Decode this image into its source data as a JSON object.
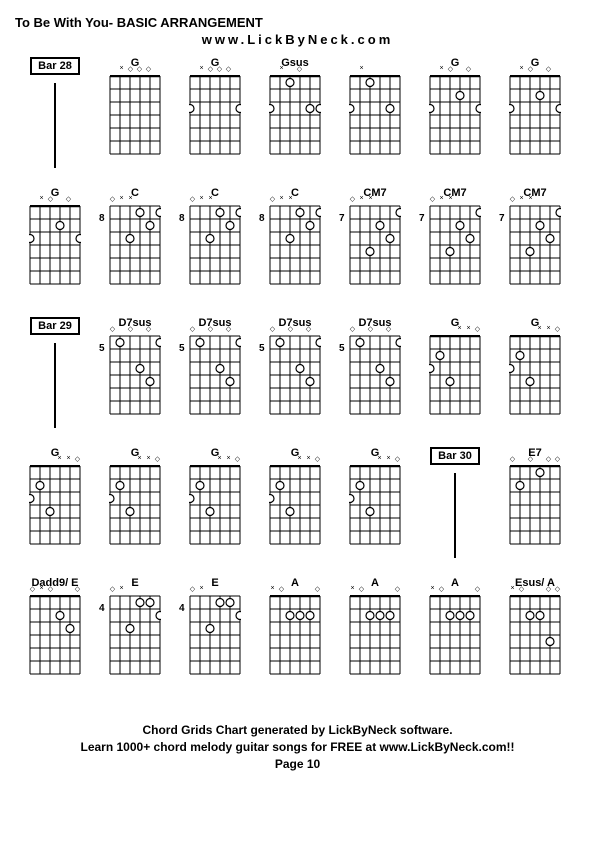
{
  "title": "To Be With You- BASIC ARRANGEMENT",
  "subtitle": "www.LickByNeck.com",
  "footer_line1": "Chord Grids Chart generated by LickByNeck software.",
  "footer_line2": "Learn 1000+ chord melody guitar songs for FREE at www.LickByNeck.com!!",
  "footer_line3": "Page 10",
  "grid_style": {
    "frets": 6,
    "strings": 6,
    "width": 50,
    "height": 78,
    "line_color": "#000000",
    "dot_color": "#ffffff",
    "dot_stroke": "#000000",
    "open_marker": "○",
    "muted_marker": "×",
    "barre_marker": "◇"
  },
  "chords": [
    {
      "type": "bar",
      "label": "Bar 28"
    },
    {
      "type": "chord",
      "name": "G",
      "fret": "",
      "markers": [
        "",
        "×",
        "◇",
        "◇",
        "◇",
        ""
      ],
      "dots": []
    },
    {
      "type": "chord",
      "name": "G",
      "fret": "",
      "markers": [
        "",
        "×",
        "◇",
        "◇",
        "◇",
        ""
      ],
      "dots": [
        [
          3,
          1
        ],
        [
          3,
          6
        ]
      ]
    },
    {
      "type": "chord",
      "name": "Gsus",
      "fret": "",
      "markers": [
        "",
        "×",
        "",
        "◇",
        "",
        ""
      ],
      "dots": [
        [
          1,
          3
        ],
        [
          3,
          1
        ],
        [
          3,
          5
        ],
        [
          3,
          6
        ]
      ]
    },
    {
      "type": "chord",
      "name": "",
      "fret": "",
      "markers": [
        "",
        "×",
        "",
        "",
        "",
        ""
      ],
      "dots": [
        [
          1,
          3
        ],
        [
          3,
          1
        ],
        [
          3,
          5
        ]
      ]
    },
    {
      "type": "chord",
      "name": "G",
      "fret": "",
      "markers": [
        "",
        "×",
        "◇",
        "",
        "◇",
        ""
      ],
      "dots": [
        [
          2,
          4
        ],
        [
          3,
          1
        ],
        [
          3,
          6
        ]
      ]
    },
    {
      "type": "chord",
      "name": "G",
      "fret": "",
      "markers": [
        "",
        "×",
        "◇",
        "",
        "◇",
        ""
      ],
      "dots": [
        [
          2,
          4
        ],
        [
          3,
          1
        ],
        [
          3,
          6
        ]
      ]
    },
    {
      "type": "chord",
      "name": "G",
      "fret": "",
      "markers": [
        "",
        "×",
        "◇",
        "",
        "◇",
        ""
      ],
      "dots": [
        [
          2,
          4
        ],
        [
          3,
          1
        ],
        [
          3,
          6
        ]
      ]
    },
    {
      "type": "chord",
      "name": "C",
      "fret": "8",
      "markers": [
        "◇",
        "×",
        "×",
        "",
        "",
        ""
      ],
      "dots": [
        [
          1,
          4
        ],
        [
          1,
          6
        ],
        [
          2,
          5
        ],
        [
          3,
          3
        ]
      ]
    },
    {
      "type": "chord",
      "name": "C",
      "fret": "8",
      "markers": [
        "◇",
        "×",
        "×",
        "",
        "",
        ""
      ],
      "dots": [
        [
          1,
          4
        ],
        [
          1,
          6
        ],
        [
          2,
          5
        ],
        [
          3,
          3
        ]
      ]
    },
    {
      "type": "chord",
      "name": "C",
      "fret": "8",
      "markers": [
        "◇",
        "×",
        "×",
        "",
        "",
        ""
      ],
      "dots": [
        [
          1,
          4
        ],
        [
          1,
          6
        ],
        [
          2,
          5
        ],
        [
          3,
          3
        ]
      ]
    },
    {
      "type": "chord",
      "name": "CM7",
      "fret": "7",
      "markers": [
        "◇",
        "×",
        "×",
        "",
        "",
        ""
      ],
      "dots": [
        [
          1,
          6
        ],
        [
          2,
          4
        ],
        [
          3,
          5
        ],
        [
          4,
          3
        ]
      ]
    },
    {
      "type": "chord",
      "name": "CM7",
      "fret": "7",
      "markers": [
        "◇",
        "×",
        "×",
        "",
        "",
        ""
      ],
      "dots": [
        [
          1,
          6
        ],
        [
          2,
          4
        ],
        [
          3,
          5
        ],
        [
          4,
          3
        ]
      ]
    },
    {
      "type": "chord",
      "name": "CM7",
      "fret": "7",
      "markers": [
        "◇",
        "×",
        "×",
        "",
        "",
        ""
      ],
      "dots": [
        [
          1,
          6
        ],
        [
          2,
          4
        ],
        [
          3,
          5
        ],
        [
          4,
          3
        ]
      ]
    },
    {
      "type": "bar",
      "label": "Bar 29"
    },
    {
      "type": "chord",
      "name": "D7sus",
      "fret": "5",
      "markers": [
        "◇",
        "",
        "◇",
        "",
        "◇",
        ""
      ],
      "dots": [
        [
          1,
          2
        ],
        [
          1,
          6
        ],
        [
          3,
          4
        ],
        [
          4,
          5
        ]
      ]
    },
    {
      "type": "chord",
      "name": "D7sus",
      "fret": "5",
      "markers": [
        "◇",
        "",
        "◇",
        "",
        "◇",
        ""
      ],
      "dots": [
        [
          1,
          2
        ],
        [
          1,
          6
        ],
        [
          3,
          4
        ],
        [
          4,
          5
        ]
      ]
    },
    {
      "type": "chord",
      "name": "D7sus",
      "fret": "5",
      "markers": [
        "◇",
        "",
        "◇",
        "",
        "◇",
        ""
      ],
      "dots": [
        [
          1,
          2
        ],
        [
          1,
          6
        ],
        [
          3,
          4
        ],
        [
          4,
          5
        ]
      ]
    },
    {
      "type": "chord",
      "name": "D7sus",
      "fret": "5",
      "markers": [
        "◇",
        "",
        "◇",
        "",
        "◇",
        ""
      ],
      "dots": [
        [
          1,
          2
        ],
        [
          1,
          6
        ],
        [
          3,
          4
        ],
        [
          4,
          5
        ]
      ]
    },
    {
      "type": "chord",
      "name": "G",
      "fret": "",
      "markers": [
        "",
        "",
        "",
        "×",
        "×",
        "◇"
      ],
      "dots": [
        [
          2,
          2
        ],
        [
          3,
          1
        ],
        [
          4,
          3
        ]
      ]
    },
    {
      "type": "chord",
      "name": "G",
      "fret": "",
      "markers": [
        "",
        "",
        "",
        "×",
        "×",
        "◇"
      ],
      "dots": [
        [
          2,
          2
        ],
        [
          3,
          1
        ],
        [
          4,
          3
        ]
      ]
    },
    {
      "type": "chord",
      "name": "G",
      "fret": "",
      "markers": [
        "",
        "",
        "",
        "×",
        "×",
        "◇"
      ],
      "dots": [
        [
          2,
          2
        ],
        [
          3,
          1
        ],
        [
          4,
          3
        ]
      ]
    },
    {
      "type": "chord",
      "name": "G",
      "fret": "",
      "markers": [
        "",
        "",
        "",
        "×",
        "×",
        "◇"
      ],
      "dots": [
        [
          2,
          2
        ],
        [
          3,
          1
        ],
        [
          4,
          3
        ]
      ]
    },
    {
      "type": "chord",
      "name": "G",
      "fret": "",
      "markers": [
        "",
        "",
        "",
        "×",
        "×",
        "◇"
      ],
      "dots": [
        [
          2,
          2
        ],
        [
          3,
          1
        ],
        [
          4,
          3
        ]
      ]
    },
    {
      "type": "chord",
      "name": "G",
      "fret": "",
      "markers": [
        "",
        "",
        "",
        "×",
        "×",
        "◇"
      ],
      "dots": [
        [
          2,
          2
        ],
        [
          3,
          1
        ],
        [
          4,
          3
        ]
      ]
    },
    {
      "type": "chord",
      "name": "G",
      "fret": "",
      "markers": [
        "",
        "",
        "",
        "×",
        "×",
        "◇"
      ],
      "dots": [
        [
          2,
          2
        ],
        [
          3,
          1
        ],
        [
          4,
          3
        ]
      ]
    },
    {
      "type": "bar",
      "label": "Bar 30"
    },
    {
      "type": "chord",
      "name": "E7",
      "fret": "",
      "markers": [
        "◇",
        "",
        "◇",
        "",
        "◇",
        "◇"
      ],
      "dots": [
        [
          1,
          4
        ],
        [
          2,
          2
        ]
      ]
    },
    {
      "type": "chord",
      "name": "Dadd9/ E",
      "fret": "",
      "markers": [
        "◇",
        "×",
        "◇",
        "",
        "",
        "◇"
      ],
      "dots": [
        [
          2,
          4
        ],
        [
          3,
          5
        ]
      ]
    },
    {
      "type": "chord",
      "name": "E",
      "fret": "4",
      "markers": [
        "◇",
        "×",
        "",
        "",
        "",
        ""
      ],
      "dots": [
        [
          1,
          4
        ],
        [
          1,
          5
        ],
        [
          2,
          6
        ],
        [
          3,
          3
        ]
      ]
    },
    {
      "type": "chord",
      "name": "E",
      "fret": "4",
      "markers": [
        "◇",
        "×",
        "",
        "",
        "",
        ""
      ],
      "dots": [
        [
          1,
          4
        ],
        [
          1,
          5
        ],
        [
          2,
          6
        ],
        [
          3,
          3
        ]
      ]
    },
    {
      "type": "chord",
      "name": "A",
      "fret": "",
      "markers": [
        "×",
        "◇",
        "",
        "",
        "",
        "◇"
      ],
      "dots": [
        [
          2,
          3
        ],
        [
          2,
          4
        ],
        [
          2,
          5
        ]
      ]
    },
    {
      "type": "chord",
      "name": "A",
      "fret": "",
      "markers": [
        "×",
        "◇",
        "",
        "",
        "",
        "◇"
      ],
      "dots": [
        [
          2,
          3
        ],
        [
          2,
          4
        ],
        [
          2,
          5
        ]
      ]
    },
    {
      "type": "chord",
      "name": "A",
      "fret": "",
      "markers": [
        "×",
        "◇",
        "",
        "",
        "",
        "◇"
      ],
      "dots": [
        [
          2,
          3
        ],
        [
          2,
          4
        ],
        [
          2,
          5
        ]
      ]
    },
    {
      "type": "chord",
      "name": "Esus/ A",
      "fret": "",
      "markers": [
        "×",
        "◇",
        "",
        "",
        "◇",
        "◇"
      ],
      "dots": [
        [
          2,
          3
        ],
        [
          2,
          4
        ],
        [
          4,
          5
        ]
      ]
    }
  ]
}
